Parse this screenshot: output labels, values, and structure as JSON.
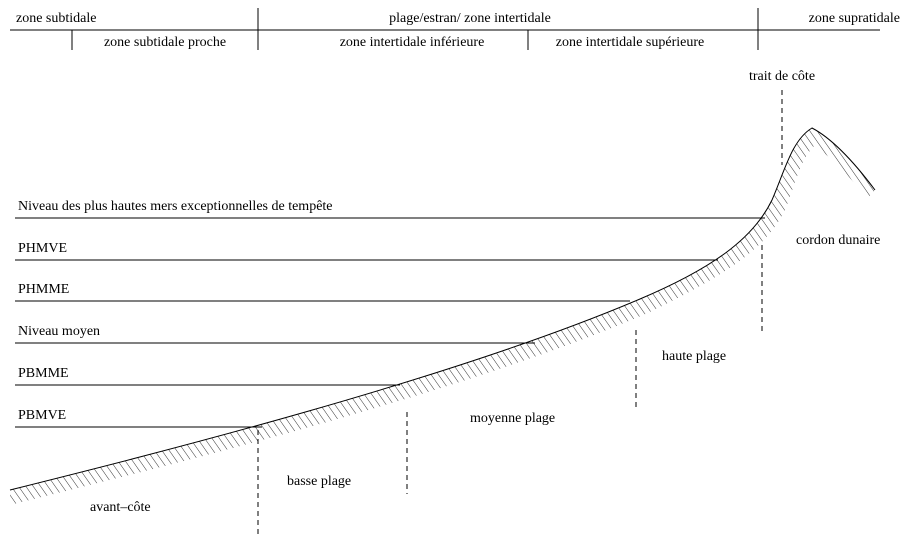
{
  "header": {
    "top": [
      "zone subtidale",
      "plage/estran/ zone intertidale",
      "zone supratidale"
    ],
    "bottom": [
      "zone subtidale proche",
      "zone intertidale inférieure",
      "zone intertidale supérieure"
    ]
  },
  "levels": [
    "Niveau des plus hautes mers exceptionnelles de tempête",
    "PHMVE",
    "PHMME",
    "Niveau moyen",
    "PBMME",
    "PBMVE"
  ],
  "features": [
    "trait de côte",
    "cordon dunaire",
    "haute plage",
    "moyenne plage",
    "basse plage",
    "avant–côte"
  ]
}
